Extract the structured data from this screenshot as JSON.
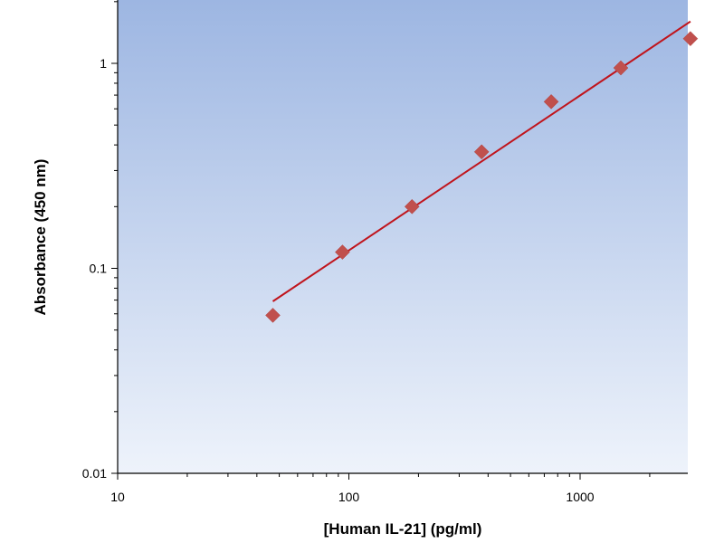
{
  "chart_data": {
    "type": "scatter",
    "title": "",
    "xlabel": "[Human IL-21] (pg/ml)",
    "ylabel": "Absorbance (450 nm)",
    "x_scale": "log",
    "y_scale": "log",
    "xlim": [
      10,
      3000
    ],
    "ylim": [
      0.01,
      2
    ],
    "x_ticks": [
      10,
      100,
      1000
    ],
    "x_tick_labels": [
      "10",
      "100",
      "1000"
    ],
    "y_ticks": [
      0.01,
      0.1,
      1
    ],
    "y_tick_labels": [
      "0.01",
      "0.1",
      "1"
    ],
    "grid": false,
    "legend": "none",
    "series": [
      {
        "type": "scatter",
        "marker": "diamond",
        "x": [
          46.9,
          93.8,
          187.5,
          375,
          750,
          1500,
          3000
        ],
        "y": [
          0.059,
          0.12,
          0.2,
          0.37,
          0.65,
          0.95,
          1.32
        ]
      },
      {
        "type": "line",
        "x": [
          46.9,
          3000
        ],
        "y": [
          0.069,
          1.6
        ]
      }
    ],
    "colors": {
      "marker": "#c0504d",
      "line": "#c0141c",
      "plot_bg_top": "#9db6e2",
      "plot_bg_bottom": "#eef3fb"
    }
  }
}
